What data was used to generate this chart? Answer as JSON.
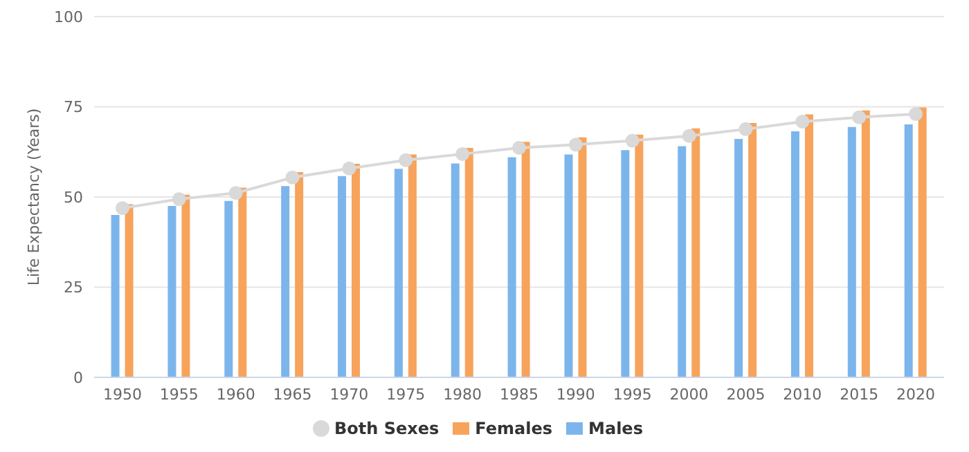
{
  "chart_data": {
    "type": "bar",
    "ylabel": "Life Expectancy (Years)",
    "categories": [
      "1950",
      "1955",
      "1960",
      "1965",
      "1970",
      "1975",
      "1980",
      "1985",
      "1990",
      "1995",
      "2000",
      "2005",
      "2010",
      "2015",
      "2020"
    ],
    "series": [
      {
        "name": "Males",
        "color": "#7cb5ec",
        "values": [
          45.0,
          47.5,
          48.9,
          53.0,
          55.8,
          57.8,
          59.3,
          61.0,
          61.8,
          63.0,
          64.1,
          66.1,
          68.2,
          69.4,
          70.1
        ]
      },
      {
        "name": "Females",
        "color": "#f7a35c",
        "values": [
          48.0,
          50.6,
          52.6,
          56.9,
          59.2,
          61.8,
          63.6,
          65.3,
          66.5,
          67.3,
          69.0,
          70.5,
          72.9,
          74.0,
          74.8
        ]
      },
      {
        "name": "Both Sexes",
        "type": "line",
        "color": "#d9d9d9",
        "values": [
          46.9,
          49.4,
          51.1,
          55.4,
          57.9,
          60.2,
          61.9,
          63.6,
          64.5,
          65.6,
          66.9,
          68.8,
          70.9,
          72.1,
          73.0
        ]
      }
    ],
    "ylim": [
      0,
      100
    ],
    "yticks": [
      0,
      25,
      50,
      75,
      100
    ],
    "grid": "y",
    "legend": "bottom",
    "marker": "circle"
  }
}
